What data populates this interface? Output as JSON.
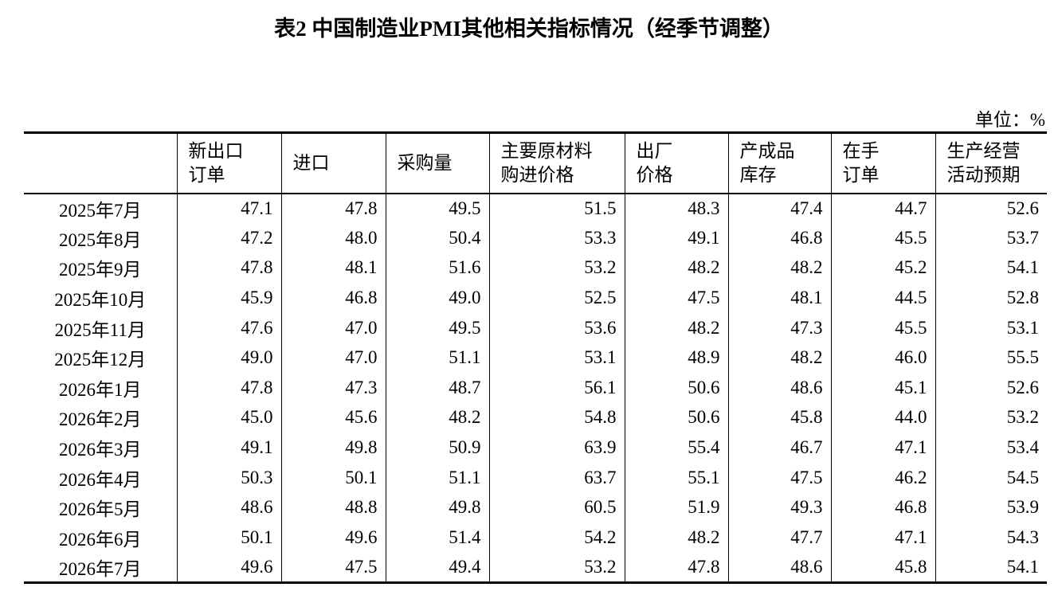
{
  "header": {
    "title": "表2 中国制造业PMI其他相关指标情况（经季节调整）",
    "unit": "单位：%"
  },
  "table": {
    "columns": [
      [
        "新出口",
        "订单"
      ],
      [
        "进口"
      ],
      [
        "采购量"
      ],
      [
        "主要原材料",
        "购进价格"
      ],
      [
        "出厂",
        "价格"
      ],
      [
        "产成品",
        "库存"
      ],
      [
        "在手",
        "订单"
      ],
      [
        "生产经营",
        "活动预期"
      ]
    ],
    "rows": [
      [
        "2025年7月",
        "47.1",
        "47.8",
        "49.5",
        "51.5",
        "48.3",
        "47.4",
        "44.7",
        "52.6"
      ],
      [
        "2025年8月",
        "47.2",
        "48.0",
        "50.4",
        "53.3",
        "49.1",
        "46.8",
        "45.5",
        "53.7"
      ],
      [
        "2025年9月",
        "47.8",
        "48.1",
        "51.6",
        "53.2",
        "48.2",
        "48.2",
        "45.2",
        "54.1"
      ],
      [
        "2025年10月",
        "45.9",
        "46.8",
        "49.0",
        "52.5",
        "47.5",
        "48.1",
        "44.5",
        "52.8"
      ],
      [
        "2025年11月",
        "47.6",
        "47.0",
        "49.5",
        "53.6",
        "48.2",
        "47.3",
        "45.5",
        "53.1"
      ],
      [
        "2025年12月",
        "49.0",
        "47.0",
        "51.1",
        "53.1",
        "48.9",
        "48.2",
        "46.0",
        "55.5"
      ],
      [
        "2026年1月",
        "47.8",
        "47.3",
        "48.7",
        "56.1",
        "50.6",
        "48.6",
        "45.1",
        "52.6"
      ],
      [
        "2026年2月",
        "45.0",
        "45.6",
        "48.2",
        "54.8",
        "50.6",
        "45.8",
        "44.0",
        "53.2"
      ],
      [
        "2026年3月",
        "49.1",
        "49.8",
        "50.9",
        "63.9",
        "55.4",
        "46.7",
        "47.1",
        "53.4"
      ],
      [
        "2026年4月",
        "50.3",
        "50.1",
        "51.1",
        "63.7",
        "55.1",
        "47.5",
        "46.2",
        "54.5"
      ],
      [
        "2026年5月",
        "48.6",
        "48.8",
        "49.8",
        "60.5",
        "51.9",
        "49.3",
        "46.8",
        "53.9"
      ],
      [
        "2026年6月",
        "50.1",
        "49.6",
        "51.4",
        "54.2",
        "48.2",
        "47.7",
        "47.1",
        "54.3"
      ],
      [
        "2026年7月",
        "49.6",
        "47.5",
        "49.4",
        "53.2",
        "47.8",
        "48.6",
        "45.8",
        "54.1"
      ]
    ]
  }
}
